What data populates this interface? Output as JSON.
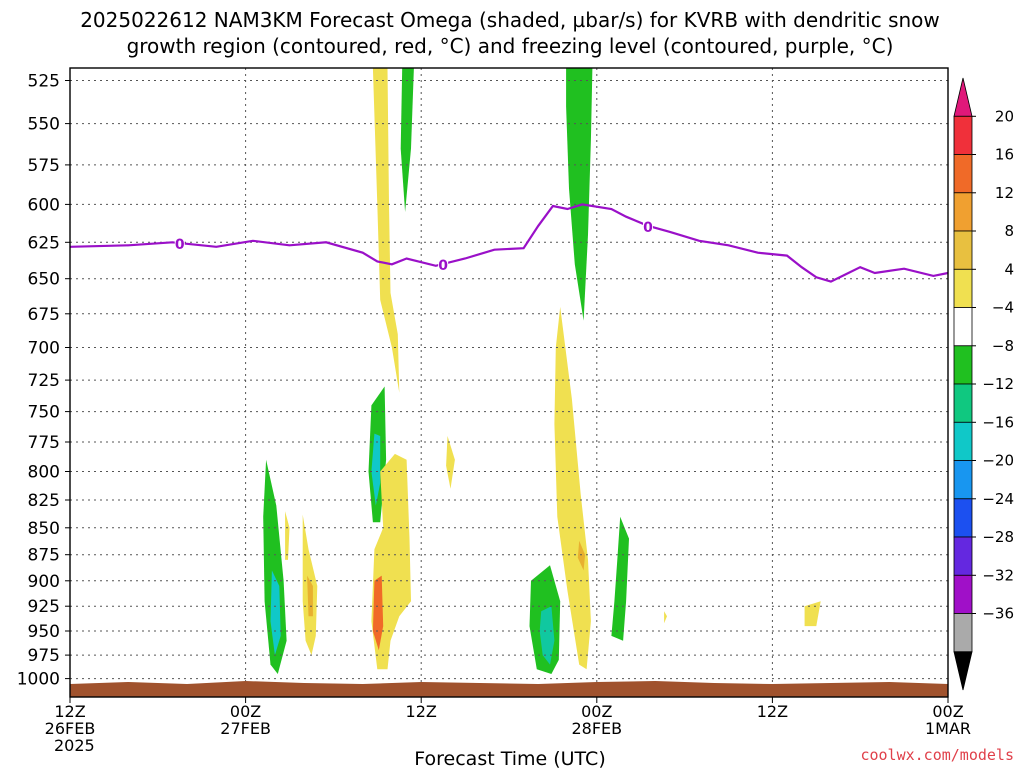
{
  "title_line1": "2025022612 NAM3KM Forecast Omega (shaded, µbar/s) for KVRB with dendritic snow",
  "title_line2": "growth region (contoured, red, °C) and freezing level (contoured, purple, °C)",
  "credit": "coolwx.com/models",
  "chart_data": {
    "type": "heatmap",
    "xlabel": "Forecast Time (UTC)",
    "x_ticks": [
      {
        "hour": 0,
        "line1": "12Z",
        "line2": "26FEB",
        "line3": "2025"
      },
      {
        "hour": 12,
        "line1": "00Z",
        "line2": "27FEB",
        "line3": ""
      },
      {
        "hour": 24,
        "line1": "12Z",
        "line2": "",
        "line3": ""
      },
      {
        "hour": 36,
        "line1": "00Z",
        "line2": "28FEB",
        "line3": ""
      },
      {
        "hour": 48,
        "line1": "12Z",
        "line2": "",
        "line3": ""
      },
      {
        "hour": 60,
        "line1": "00Z",
        "line2": "1MAR",
        "line3": ""
      }
    ],
    "x_range": [
      0,
      60
    ],
    "y_range_hpa": [
      518,
      1020
    ],
    "y_scale": "log-pressure",
    "y_ticks": [
      525,
      550,
      575,
      600,
      625,
      650,
      675,
      700,
      725,
      750,
      775,
      800,
      825,
      850,
      875,
      900,
      925,
      950,
      975,
      1000
    ],
    "grid": true,
    "colorbar": {
      "unit": "µbar/s",
      "labels": [
        "20",
        "16",
        "12",
        "8",
        "4",
        "−4",
        "−8",
        "−12",
        "−16",
        "−20",
        "−24",
        "−28",
        "−32",
        "−36"
      ],
      "colors": [
        "#e0187a",
        "#f0303a",
        "#f06a28",
        "#f0a030",
        "#e8c040",
        "#f0e050",
        "#ffffff",
        "#20c020",
        "#10c880",
        "#10c8c8",
        "#1896f0",
        "#1c50f0",
        "#6428e0",
        "#a010c8",
        "#aaaaaa",
        "#000000"
      ]
    },
    "freezing_level": {
      "label": "0",
      "color": "#9a10c8",
      "points": [
        [
          0,
          628
        ],
        [
          4,
          627
        ],
        [
          7,
          625
        ],
        [
          10,
          628
        ],
        [
          12.5,
          624
        ],
        [
          15,
          627
        ],
        [
          17.5,
          625
        ],
        [
          20,
          632
        ],
        [
          21,
          638
        ],
        [
          22,
          640
        ],
        [
          23,
          636
        ],
        [
          25,
          641
        ],
        [
          27,
          636
        ],
        [
          29,
          630
        ],
        [
          31,
          629
        ],
        [
          32,
          614
        ],
        [
          33,
          601
        ],
        [
          34,
          603
        ],
        [
          35,
          600
        ],
        [
          37,
          603
        ],
        [
          38,
          608
        ],
        [
          39.5,
          614
        ],
        [
          41,
          618
        ],
        [
          43,
          624
        ],
        [
          45,
          627
        ],
        [
          47,
          632
        ],
        [
          49,
          634
        ],
        [
          50,
          642
        ],
        [
          51,
          649
        ],
        [
          52,
          652
        ],
        [
          53,
          647
        ],
        [
          54,
          642
        ],
        [
          55,
          646
        ],
        [
          57,
          643
        ],
        [
          59,
          648
        ],
        [
          60,
          646
        ]
      ],
      "label_hours": [
        7.5,
        25.5,
        39.5
      ]
    },
    "shaded_regions": [
      {
        "value_range": [
          4,
          8
        ],
        "color": "#f0e050",
        "points": [
          [
            20.7,
            518
          ],
          [
            21.7,
            518
          ],
          [
            21.8,
            600
          ],
          [
            21.9,
            660
          ],
          [
            22.4,
            690
          ],
          [
            22.5,
            735
          ],
          [
            22.0,
            700
          ],
          [
            21.2,
            665
          ],
          [
            21.0,
            600
          ]
        ]
      },
      {
        "value_range": [
          -8,
          -4
        ],
        "color": "#20c020",
        "points": [
          [
            22.7,
            518
          ],
          [
            23.5,
            518
          ],
          [
            23.3,
            565
          ],
          [
            22.9,
            605
          ],
          [
            22.6,
            565
          ]
        ]
      },
      {
        "value_range": [
          -8,
          -4
        ],
        "color": "#20c020",
        "points": [
          [
            33.9,
            518
          ],
          [
            35.7,
            518
          ],
          [
            35.6,
            560
          ],
          [
            35.4,
            620
          ],
          [
            35.1,
            680
          ],
          [
            34.5,
            640
          ],
          [
            34.1,
            590
          ],
          [
            33.9,
            540
          ]
        ]
      },
      {
        "value_range": [
          4,
          8
        ],
        "color": "#f0e050",
        "points": [
          [
            33.5,
            670
          ],
          [
            34.3,
            740
          ],
          [
            34.9,
            820
          ],
          [
            35.4,
            880
          ],
          [
            35.6,
            940
          ],
          [
            35.3,
            990
          ],
          [
            34.8,
            985
          ],
          [
            34.0,
            910
          ],
          [
            33.3,
            840
          ],
          [
            33.1,
            760
          ],
          [
            33.2,
            700
          ]
        ]
      },
      {
        "value_range": [
          8,
          12
        ],
        "color": "#e8b030",
        "points": [
          [
            34.8,
            862
          ],
          [
            35.2,
            875
          ],
          [
            35.1,
            890
          ],
          [
            34.7,
            878
          ]
        ]
      },
      {
        "value_range": [
          -8,
          -4
        ],
        "color": "#20c020",
        "points": [
          [
            31.5,
            900
          ],
          [
            32.8,
            885
          ],
          [
            33.5,
            920
          ],
          [
            33.4,
            980
          ],
          [
            32.9,
            995
          ],
          [
            31.9,
            990
          ],
          [
            31.4,
            945
          ]
        ]
      },
      {
        "value_range": [
          -12,
          -8
        ],
        "color": "#10c8a0",
        "points": [
          [
            32.2,
            930
          ],
          [
            32.9,
            925
          ],
          [
            33.1,
            960
          ],
          [
            32.8,
            985
          ],
          [
            32.3,
            975
          ],
          [
            32.1,
            950
          ]
        ]
      },
      {
        "value_range": [
          -8,
          -4
        ],
        "color": "#20c020",
        "points": [
          [
            37.6,
            840
          ],
          [
            38.2,
            860
          ],
          [
            38.0,
            920
          ],
          [
            37.8,
            960
          ],
          [
            37.0,
            955
          ],
          [
            37.2,
            920
          ],
          [
            37.4,
            880
          ]
        ]
      },
      {
        "value_range": [
          -8,
          -4
        ],
        "color": "#20c020",
        "points": [
          [
            20.6,
            745
          ],
          [
            21.5,
            730
          ],
          [
            21.6,
            790
          ],
          [
            21.2,
            845
          ],
          [
            20.7,
            845
          ],
          [
            20.4,
            800
          ]
        ]
      },
      {
        "value_range": [
          -16,
          -12
        ],
        "color": "#10c8c8",
        "points": [
          [
            20.8,
            768
          ],
          [
            21.2,
            770
          ],
          [
            21.2,
            810
          ],
          [
            20.9,
            830
          ],
          [
            20.6,
            800
          ]
        ]
      },
      {
        "value_range": [
          4,
          8
        ],
        "color": "#f0e050",
        "points": [
          [
            21.2,
            800
          ],
          [
            22.2,
            785
          ],
          [
            23.0,
            790
          ],
          [
            23.2,
            860
          ],
          [
            23.3,
            920
          ],
          [
            22.5,
            935
          ],
          [
            21.9,
            960
          ],
          [
            21.7,
            990
          ],
          [
            21.0,
            990
          ],
          [
            20.6,
            940
          ],
          [
            20.8,
            870
          ],
          [
            21.4,
            850
          ]
        ]
      },
      {
        "value_range": [
          12,
          16
        ],
        "color": "#f06a28",
        "points": [
          [
            20.8,
            900
          ],
          [
            21.3,
            895
          ],
          [
            21.4,
            945
          ],
          [
            21.1,
            970
          ],
          [
            20.7,
            950
          ]
        ]
      },
      {
        "value_range": [
          -8,
          -4
        ],
        "color": "#20c020",
        "points": [
          [
            13.4,
            790
          ],
          [
            14.1,
            830
          ],
          [
            14.6,
            900
          ],
          [
            14.8,
            960
          ],
          [
            14.2,
            995
          ],
          [
            13.7,
            985
          ],
          [
            13.3,
            920
          ],
          [
            13.2,
            840
          ]
        ]
      },
      {
        "value_range": [
          -16,
          -12
        ],
        "color": "#10c8c8",
        "points": [
          [
            13.8,
            890
          ],
          [
            14.3,
            905
          ],
          [
            14.4,
            955
          ],
          [
            14.0,
            975
          ],
          [
            13.7,
            940
          ]
        ]
      },
      {
        "value_range": [
          4,
          8
        ],
        "color": "#f0e050",
        "points": [
          [
            15.9,
            838
          ],
          [
            16.3,
            870
          ],
          [
            16.9,
            905
          ],
          [
            16.8,
            955
          ],
          [
            16.5,
            975
          ],
          [
            16.1,
            960
          ],
          [
            15.9,
            920
          ]
        ]
      },
      {
        "value_range": [
          8,
          12
        ],
        "color": "#e8b030",
        "points": [
          [
            16.2,
            895
          ],
          [
            16.6,
            905
          ],
          [
            16.6,
            935
          ],
          [
            16.3,
            935
          ]
        ]
      },
      {
        "value_range": [
          4,
          8
        ],
        "color": "#f0e050",
        "points": [
          [
            14.7,
            835
          ],
          [
            15.0,
            850
          ],
          [
            14.9,
            880
          ],
          [
            14.7,
            880
          ]
        ]
      },
      {
        "value_range": [
          4,
          8
        ],
        "color": "#f0e050",
        "points": [
          [
            25.8,
            770
          ],
          [
            26.3,
            790
          ],
          [
            26.0,
            815
          ],
          [
            25.7,
            795
          ]
        ]
      },
      {
        "value_range": [
          4,
          8
        ],
        "color": "#f0e050",
        "points": [
          [
            50.2,
            925
          ],
          [
            51.3,
            920
          ],
          [
            51.0,
            945
          ],
          [
            50.2,
            945
          ]
        ]
      },
      {
        "value_range": [
          4,
          8
        ],
        "color": "#f0e050",
        "points": [
          [
            40.6,
            930
          ],
          [
            40.8,
            935
          ],
          [
            40.6,
            942
          ]
        ]
      }
    ]
  }
}
